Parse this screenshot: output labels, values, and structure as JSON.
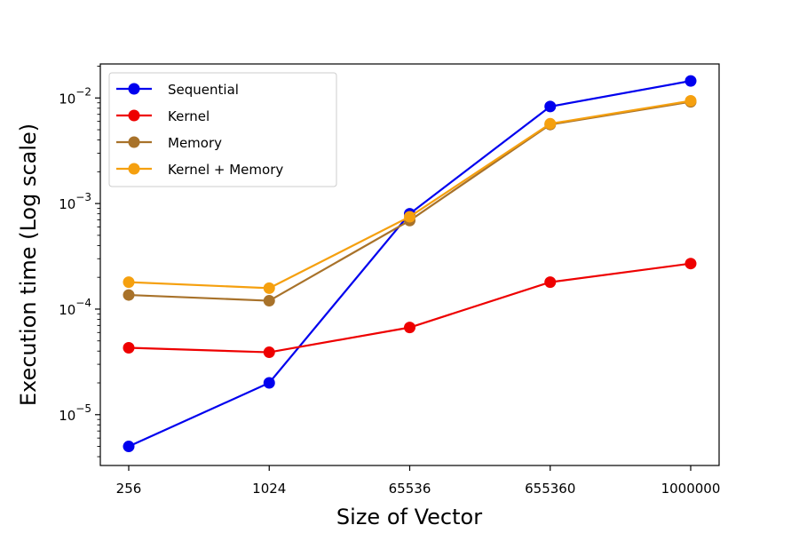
{
  "chart_data": {
    "type": "line",
    "title": "",
    "xlabel": "Size of Vector",
    "ylabel": "Execution time (Log scale)",
    "yscale": "log",
    "ylim": [
      3.3e-06,
      0.021
    ],
    "grid": false,
    "legend_position": "top-left",
    "categories": [
      "256",
      "1024",
      "65536",
      "655360",
      "1000000"
    ],
    "y_ticks": [
      {
        "value": 1e-05,
        "base": "10",
        "exp": "−5"
      },
      {
        "value": 0.0001,
        "base": "10",
        "exp": "−4"
      },
      {
        "value": 0.001,
        "base": "10",
        "exp": "−3"
      },
      {
        "value": 0.01,
        "base": "10",
        "exp": "−2"
      }
    ],
    "series": [
      {
        "name": "Sequential",
        "color": "#0000ee",
        "values": [
          5e-06,
          2e-05,
          0.0008,
          0.0083,
          0.0145
        ]
      },
      {
        "name": "Kernel",
        "color": "#ee0000",
        "values": [
          4.3e-05,
          3.9e-05,
          6.7e-05,
          0.00018,
          0.00027
        ]
      },
      {
        "name": "Memory",
        "color": "#a8722a",
        "values": [
          0.000136,
          0.00012,
          0.00069,
          0.0056,
          0.0092
        ]
      },
      {
        "name": "Kernel + Memory",
        "color": "#f5a00f",
        "values": [
          0.00018,
          0.000158,
          0.00075,
          0.0057,
          0.0094
        ]
      }
    ]
  }
}
